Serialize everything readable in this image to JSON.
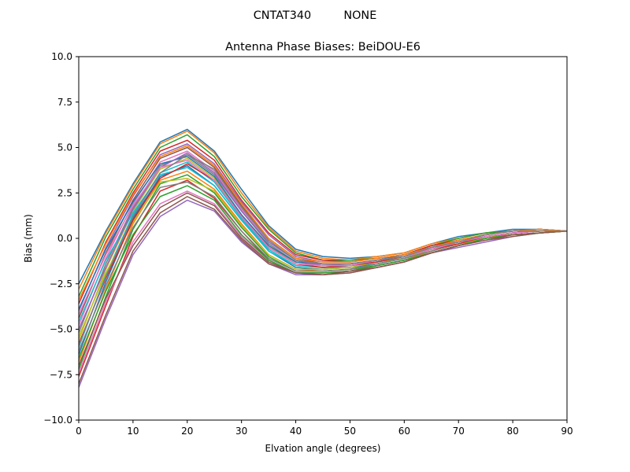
{
  "figure": {
    "suptitle": "CNTAT340         NONE"
  },
  "chart_data": {
    "type": "line",
    "title": "Antenna Phase Biases: BeiDOU-E6",
    "xlabel": "Elvation angle (degrees)",
    "ylabel": "Bias (mm)",
    "xlim": [
      0,
      90
    ],
    "ylim": [
      -10.0,
      10.0
    ],
    "x_ticks": [
      0,
      10,
      20,
      30,
      40,
      50,
      60,
      70,
      80,
      90
    ],
    "y_ticks": [
      -10.0,
      -7.5,
      -5.0,
      -2.5,
      0.0,
      2.5,
      5.0,
      7.5,
      10.0
    ],
    "x_tick_labels": [
      "0",
      "10",
      "20",
      "30",
      "40",
      "50",
      "60",
      "70",
      "80",
      "90"
    ],
    "y_tick_labels": [
      "−10.0",
      "−7.5",
      "−5.0",
      "−2.5",
      "0.0",
      "2.5",
      "5.0",
      "7.5",
      "10.0"
    ],
    "grid": false,
    "legend": "none",
    "x": [
      0,
      5,
      10,
      15,
      20,
      25,
      30,
      35,
      40,
      45,
      50,
      55,
      60,
      65,
      70,
      75,
      80,
      85,
      90
    ],
    "colors": [
      "#1f77b4",
      "#ff7f0e",
      "#2ca02c",
      "#d62728",
      "#9467bd",
      "#8c564b",
      "#e377c2",
      "#7f7f7f",
      "#bcbd22",
      "#17becf"
    ],
    "series": [
      {
        "values": [
          -2.5,
          0.4,
          3.0,
          5.3,
          6.0,
          4.8,
          2.7,
          0.7,
          -0.6,
          -1.0,
          -1.1,
          -1.0,
          -0.8,
          -0.3,
          0.1,
          0.3,
          0.5,
          0.5,
          0.4
        ]
      },
      {
        "values": [
          -2.8,
          0.3,
          2.9,
          5.2,
          5.9,
          4.7,
          2.5,
          0.6,
          -0.7,
          -1.1,
          -1.2,
          -1.0,
          -0.8,
          -0.3,
          0.0,
          0.3,
          0.4,
          0.5,
          0.4
        ]
      },
      {
        "values": [
          -3.2,
          0.1,
          2.7,
          5.0,
          5.7,
          4.5,
          2.3,
          0.5,
          -0.8,
          -1.2,
          -1.2,
          -1.1,
          -0.9,
          -0.4,
          0.0,
          0.3,
          0.4,
          0.5,
          0.4
        ]
      },
      {
        "values": [
          -3.6,
          -0.2,
          2.5,
          4.8,
          5.4,
          4.3,
          2.1,
          0.3,
          -0.9,
          -1.2,
          -1.3,
          -1.1,
          -0.9,
          -0.4,
          -0.1,
          0.2,
          0.4,
          0.5,
          0.4
        ]
      },
      {
        "values": [
          -4.0,
          -0.5,
          2.3,
          4.6,
          5.2,
          4.1,
          2.0,
          0.2,
          -1.0,
          -1.3,
          -1.3,
          -1.1,
          -0.9,
          -0.5,
          -0.1,
          0.2,
          0.4,
          0.5,
          0.4
        ]
      },
      {
        "values": [
          -4.4,
          -0.8,
          2.1,
          4.4,
          5.0,
          3.9,
          1.8,
          0.0,
          -1.1,
          -1.4,
          -1.4,
          -1.2,
          -1.0,
          -0.5,
          -0.1,
          0.2,
          0.4,
          0.5,
          0.4
        ]
      },
      {
        "values": [
          -4.8,
          -1.1,
          1.9,
          4.2,
          4.8,
          3.7,
          1.6,
          -0.1,
          -1.2,
          -1.4,
          -1.4,
          -1.2,
          -1.0,
          -0.5,
          -0.2,
          0.2,
          0.4,
          0.4,
          0.4
        ]
      },
      {
        "values": [
          -5.2,
          -1.4,
          1.7,
          4.0,
          4.6,
          3.5,
          1.5,
          -0.3,
          -1.3,
          -1.5,
          -1.5,
          -1.3,
          -1.0,
          -0.6,
          -0.2,
          0.1,
          0.3,
          0.4,
          0.4
        ]
      },
      {
        "values": [
          -5.6,
          -1.7,
          1.5,
          3.8,
          4.4,
          3.3,
          1.3,
          -0.4,
          -1.4,
          -1.6,
          -1.5,
          -1.3,
          -1.1,
          -0.6,
          -0.2,
          0.1,
          0.3,
          0.4,
          0.4
        ]
      },
      {
        "values": [
          -6.0,
          -2.0,
          1.3,
          3.6,
          4.2,
          3.1,
          1.1,
          -0.6,
          -1.5,
          -1.6,
          -1.6,
          -1.4,
          -1.1,
          -0.7,
          -0.3,
          0.1,
          0.3,
          0.4,
          0.4
        ]
      },
      {
        "values": [
          -6.4,
          -2.4,
          1.1,
          3.4,
          4.0,
          2.9,
          1.0,
          -0.7,
          -1.6,
          -1.7,
          -1.6,
          -1.4,
          -1.1,
          -0.7,
          -0.3,
          0.1,
          0.3,
          0.4,
          0.4
        ]
      },
      {
        "values": [
          -6.8,
          -2.8,
          0.8,
          3.2,
          3.7,
          2.7,
          0.8,
          -0.9,
          -1.7,
          -1.8,
          -1.7,
          -1.5,
          -1.2,
          -0.7,
          -0.3,
          0.0,
          0.3,
          0.4,
          0.4
        ]
      },
      {
        "values": [
          -7.2,
          -3.2,
          0.5,
          3.0,
          3.5,
          2.5,
          0.6,
          -1.0,
          -1.8,
          -1.8,
          -1.7,
          -1.5,
          -1.2,
          -0.8,
          -0.4,
          0.0,
          0.2,
          0.3,
          0.4
        ]
      },
      {
        "values": [
          -7.6,
          -3.7,
          0.1,
          2.6,
          3.2,
          2.2,
          0.4,
          -1.2,
          -1.9,
          -1.9,
          -1.8,
          -1.5,
          -1.2,
          -0.8,
          -0.4,
          0.0,
          0.2,
          0.3,
          0.4
        ]
      },
      {
        "values": [
          -8.2,
          -4.4,
          -0.9,
          1.2,
          2.1,
          1.5,
          -0.2,
          -1.4,
          -2.0,
          -2.0,
          -1.9,
          -1.6,
          -1.3,
          -0.8,
          -0.5,
          -0.2,
          0.1,
          0.3,
          0.4
        ]
      },
      {
        "values": [
          -8.0,
          -4.2,
          -0.7,
          1.4,
          2.3,
          1.6,
          -0.1,
          -1.4,
          -1.9,
          -2.0,
          -1.9,
          -1.6,
          -1.3,
          -0.8,
          -0.4,
          -0.1,
          0.1,
          0.3,
          0.4
        ]
      },
      {
        "values": [
          -7.4,
          -3.5,
          -0.2,
          1.9,
          2.6,
          1.9,
          0.1,
          -1.3,
          -1.9,
          -1.9,
          -1.8,
          -1.5,
          -1.2,
          -0.8,
          -0.4,
          -0.1,
          0.2,
          0.3,
          0.4
        ]
      },
      {
        "values": [
          -6.2,
          -2.6,
          0.6,
          2.8,
          3.1,
          2.3,
          0.4,
          -1.1,
          -1.8,
          -1.8,
          -1.7,
          -1.4,
          -1.1,
          -0.7,
          -0.3,
          0.0,
          0.2,
          0.3,
          0.4
        ]
      },
      {
        "values": [
          -5.4,
          -1.9,
          0.9,
          3.1,
          3.3,
          2.6,
          0.7,
          -0.9,
          -1.7,
          -1.7,
          -1.6,
          -1.3,
          -1.0,
          -0.6,
          -0.3,
          0.0,
          0.2,
          0.3,
          0.4
        ]
      },
      {
        "values": [
          -4.6,
          -1.2,
          1.4,
          3.5,
          3.9,
          2.9,
          1.0,
          -0.7,
          -1.5,
          -1.6,
          -1.5,
          -1.3,
          -1.0,
          -0.6,
          -0.2,
          0.1,
          0.3,
          0.4,
          0.4
        ]
      },
      {
        "values": [
          -3.9,
          -0.6,
          2.0,
          4.1,
          4.5,
          3.4,
          1.3,
          -0.4,
          -1.3,
          -1.4,
          -1.4,
          -1.2,
          -0.9,
          -0.5,
          -0.2,
          0.1,
          0.3,
          0.4,
          0.4
        ]
      },
      {
        "values": [
          -3.4,
          -0.3,
          2.4,
          4.5,
          5.1,
          4.0,
          1.9,
          0.0,
          -1.1,
          -1.3,
          -1.3,
          -1.1,
          -0.9,
          -0.5,
          -0.1,
          0.2,
          0.4,
          0.5,
          0.4
        ]
      },
      {
        "values": [
          -6.6,
          -2.9,
          0.2,
          2.3,
          2.9,
          2.1,
          0.2,
          -1.2,
          -1.9,
          -1.9,
          -1.8,
          -1.5,
          -1.2,
          -0.8,
          -0.4,
          0.0,
          0.2,
          0.3,
          0.4
        ]
      },
      {
        "values": [
          -5.8,
          -2.2,
          1.0,
          3.3,
          4.1,
          3.2,
          1.2,
          -0.5,
          -1.4,
          -1.6,
          -1.5,
          -1.3,
          -1.0,
          -0.6,
          -0.3,
          0.1,
          0.3,
          0.4,
          0.4
        ]
      },
      {
        "values": [
          -5.0,
          -1.6,
          1.6,
          3.9,
          4.7,
          3.6,
          1.5,
          -0.2,
          -1.2,
          -1.5,
          -1.4,
          -1.2,
          -1.0,
          -0.5,
          -0.2,
          0.1,
          0.3,
          0.4,
          0.4
        ]
      },
      {
        "values": [
          -7.0,
          -3.3,
          -0.4,
          1.7,
          2.5,
          1.8,
          0.0,
          -1.3,
          -1.9,
          -2.0,
          -1.8,
          -1.6,
          -1.3,
          -0.8,
          -0.4,
          -0.1,
          0.2,
          0.3,
          0.4
        ]
      },
      {
        "values": [
          -4.2,
          -0.9,
          1.8,
          3.9,
          4.3,
          3.2,
          1.2,
          -0.5,
          -1.4,
          -1.5,
          -1.5,
          -1.2,
          -1.0,
          -0.6,
          -0.2,
          0.1,
          0.3,
          0.4,
          0.4
        ]
      },
      {
        "values": [
          -5.9,
          -2.1,
          1.2,
          3.6,
          4.6,
          3.8,
          1.7,
          -0.1,
          -1.2,
          -1.4,
          -1.4,
          -1.2,
          -1.0,
          -0.5,
          -0.2,
          0.2,
          0.4,
          0.4,
          0.4
        ]
      }
    ]
  }
}
